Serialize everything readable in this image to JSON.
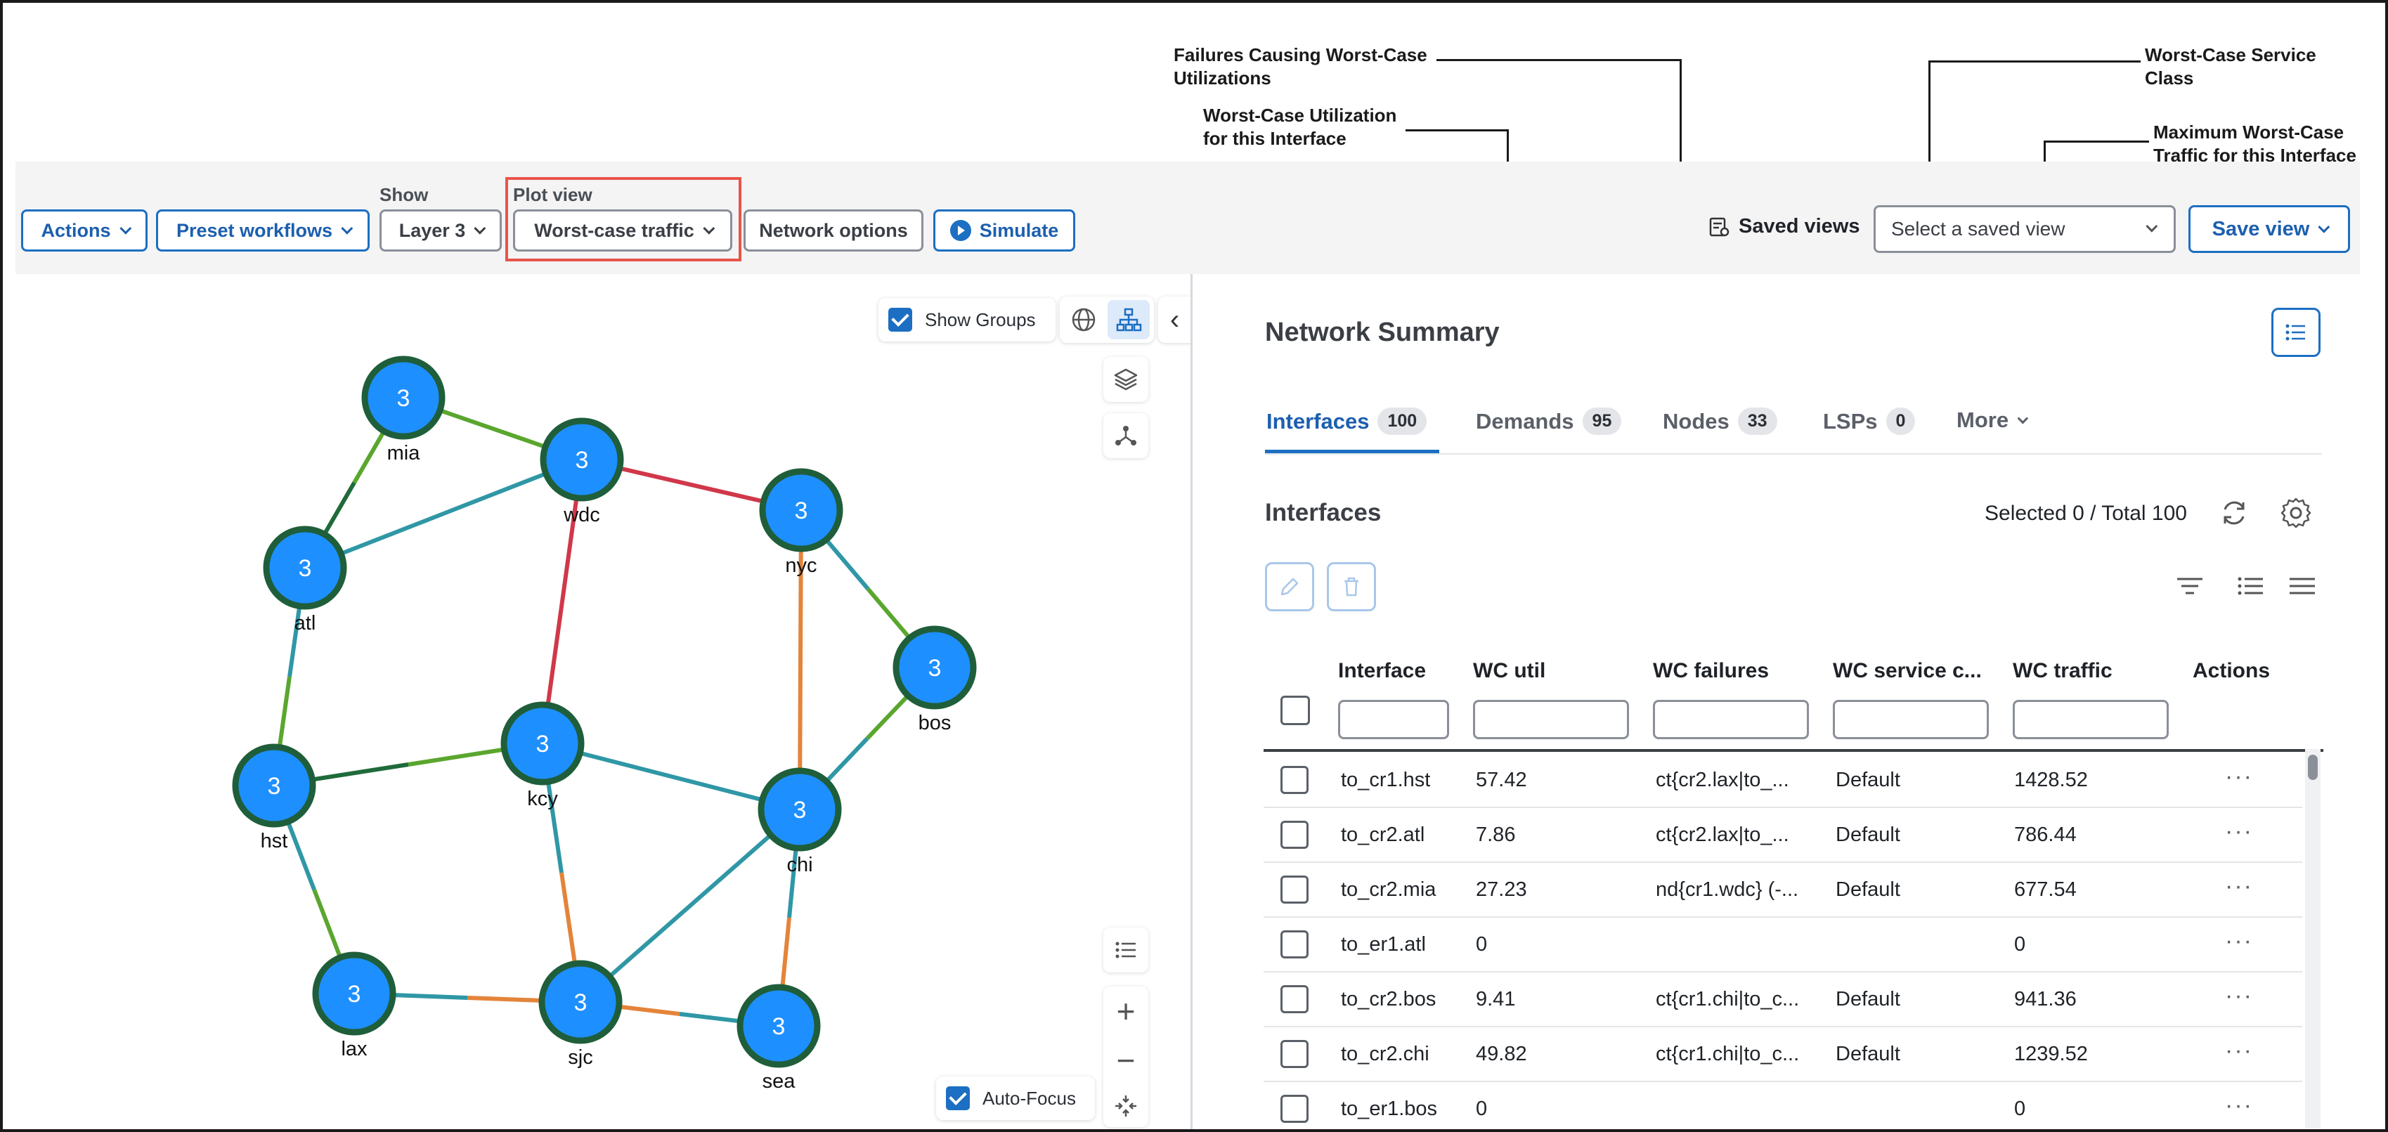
{
  "callouts": {
    "wc_util": "Worst-Case Utilization\nfor this Interface",
    "wc_failures": "Failures Causing Worst-Case\nUtilizations",
    "wc_service_class": "Worst-Case Service\nClass",
    "wc_traffic": "Maximum Worst-Case\nTraffic for this Interface"
  },
  "toolbar": {
    "actions_label": "Actions",
    "preset_label": "Preset workflows",
    "show_label": "Show",
    "layer_value": "Layer 3",
    "plot_view_label": "Plot view",
    "plot_view_value": "Worst-case traffic",
    "network_options_label": "Network options",
    "simulate_label": "Simulate",
    "saved_views_label": "Saved views",
    "saved_view_placeholder": "Select a saved view",
    "save_view_label": "Save view"
  },
  "map": {
    "show_groups_label": "Show Groups",
    "auto_focus_label": "Auto-Focus",
    "nodes": [
      {
        "id": "mia",
        "label": "mia",
        "count": "3"
      },
      {
        "id": "wdc",
        "label": "wdc",
        "count": "3"
      },
      {
        "id": "atl",
        "label": "atl",
        "count": "3"
      },
      {
        "id": "nyc",
        "label": "nyc",
        "count": "3"
      },
      {
        "id": "bos",
        "label": "bos",
        "count": "3"
      },
      {
        "id": "kcy",
        "label": "kcy",
        "count": "3"
      },
      {
        "id": "hst",
        "label": "hst",
        "count": "3"
      },
      {
        "id": "chi",
        "label": "chi",
        "count": "3"
      },
      {
        "id": "lax",
        "label": "lax",
        "count": "3"
      },
      {
        "id": "sjc",
        "label": "sjc",
        "count": "3"
      },
      {
        "id": "sea",
        "label": "sea",
        "count": "3"
      }
    ],
    "colors": {
      "node_fill": "#1e8fff",
      "node_ring": "#1f5e3a",
      "green": "#5aa62e",
      "teal": "#2f97a6",
      "red": "#d0384a",
      "orange": "#e4843a",
      "dark_green": "#1f6b3a"
    }
  },
  "summary": {
    "title": "Network Summary",
    "tabs": [
      {
        "label": "Interfaces",
        "count": "100"
      },
      {
        "label": "Demands",
        "count": "95"
      },
      {
        "label": "Nodes",
        "count": "33"
      },
      {
        "label": "LSPs",
        "count": "0"
      },
      {
        "label": "More",
        "count": ""
      }
    ],
    "section_title": "Interfaces",
    "selection_text": "Selected 0 / Total 100",
    "columns": [
      "Interface",
      "WC util",
      "WC failures",
      "WC service c...",
      "WC traffic",
      "Actions"
    ],
    "rows": [
      {
        "interface": "to_cr1.hst",
        "wc_util": "57.42",
        "wc_failures": "ct{cr2.lax|to_...",
        "wc_service": "Default",
        "wc_traffic": "1428.52"
      },
      {
        "interface": "to_cr2.atl",
        "wc_util": "7.86",
        "wc_failures": "ct{cr2.lax|to_...",
        "wc_service": "Default",
        "wc_traffic": "786.44"
      },
      {
        "interface": "to_cr2.mia",
        "wc_util": "27.23",
        "wc_failures": "nd{cr1.wdc} (-...",
        "wc_service": "Default",
        "wc_traffic": "677.54"
      },
      {
        "interface": "to_er1.atl",
        "wc_util": "0",
        "wc_failures": "",
        "wc_service": "",
        "wc_traffic": "0"
      },
      {
        "interface": "to_cr2.bos",
        "wc_util": "9.41",
        "wc_failures": "ct{cr1.chi|to_c...",
        "wc_service": "Default",
        "wc_traffic": "941.36"
      },
      {
        "interface": "to_cr2.chi",
        "wc_util": "49.82",
        "wc_failures": "ct{cr1.chi|to_c...",
        "wc_service": "Default",
        "wc_traffic": "1239.52"
      },
      {
        "interface": "to_er1.bos",
        "wc_util": "0",
        "wc_failures": "",
        "wc_service": "",
        "wc_traffic": "0"
      }
    ],
    "row_actions": "···"
  }
}
